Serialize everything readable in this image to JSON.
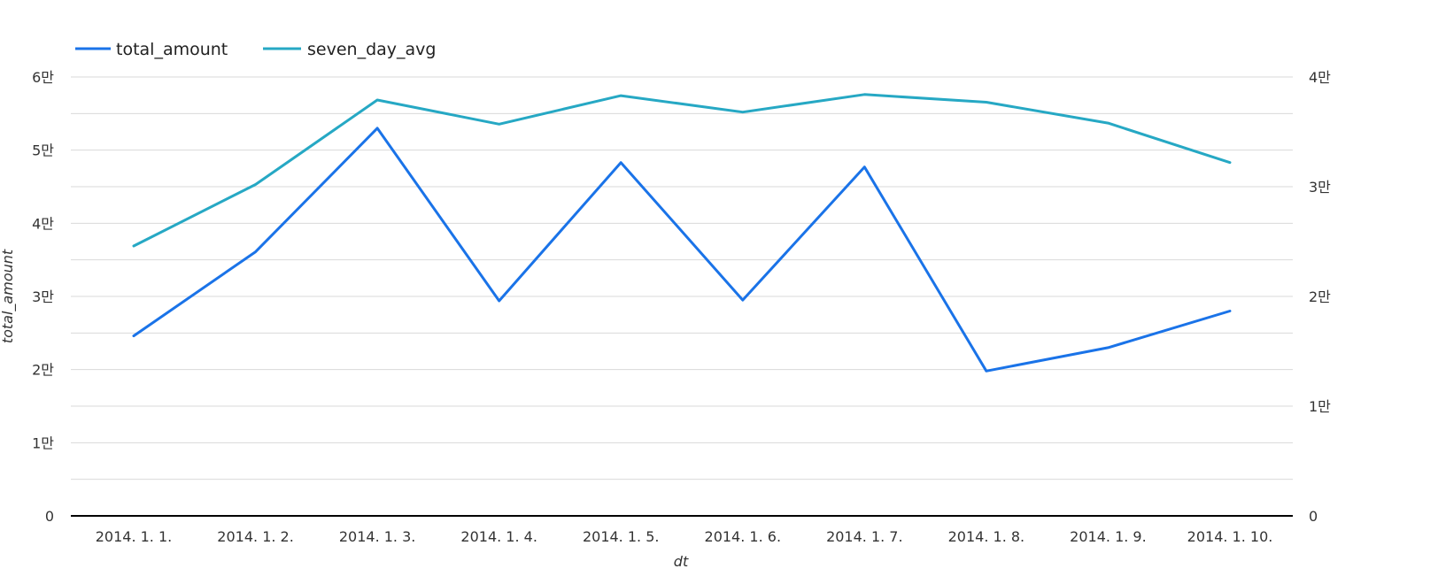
{
  "chart_data": {
    "type": "line",
    "categories": [
      "2014. 1. 1.",
      "2014. 1. 2.",
      "2014. 1. 3.",
      "2014. 1. 4.",
      "2014. 1. 5.",
      "2014. 1. 6.",
      "2014. 1. 7.",
      "2014. 1. 8.",
      "2014. 1. 9.",
      "2014. 1. 10."
    ],
    "series": [
      {
        "name": "total_amount",
        "axis": "left",
        "color": "#1a73e8",
        "values": [
          24600,
          36100,
          53000,
          29400,
          48300,
          29500,
          47700,
          19800,
          23000,
          28000
        ]
      },
      {
        "name": "seven_day_avg",
        "axis": "right",
        "color": "#26a8c4",
        "values": [
          24600,
          30200,
          37900,
          35700,
          38300,
          36800,
          38400,
          37700,
          35800,
          32200
        ]
      }
    ],
    "xlabel": "dt",
    "ylabel": "total_amount",
    "ylim_left": [
      0,
      60000
    ],
    "ylim_right": [
      0,
      40000
    ],
    "left_ticks": [
      {
        "value": 0,
        "label": "0"
      },
      {
        "value": 10000,
        "label": "1만"
      },
      {
        "value": 20000,
        "label": "2만"
      },
      {
        "value": 30000,
        "label": "3만"
      },
      {
        "value": 40000,
        "label": "4만"
      },
      {
        "value": 50000,
        "label": "5만"
      },
      {
        "value": 60000,
        "label": "6만"
      }
    ],
    "right_ticks": [
      {
        "value": 0,
        "label": "0"
      },
      {
        "value": 10000,
        "label": "1만"
      },
      {
        "value": 20000,
        "label": "2만"
      },
      {
        "value": 30000,
        "label": "3만"
      },
      {
        "value": 40000,
        "label": "4만"
      }
    ],
    "grid": true,
    "legend": "top-left"
  }
}
